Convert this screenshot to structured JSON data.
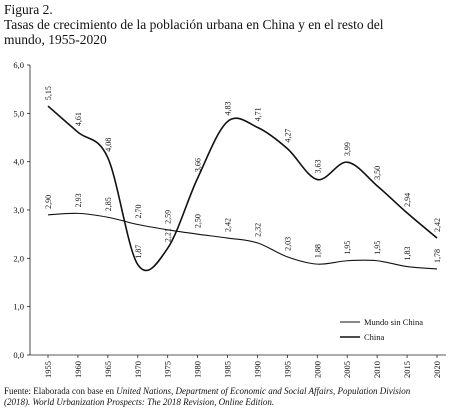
{
  "chart_data": {
    "type": "line",
    "label": "Figura 2.",
    "title": [
      "Tasas de crecimiento de la población urbana en China y en el resto del",
      "mundo, 1955-2020"
    ],
    "categories": [
      "1955",
      "1960",
      "1965",
      "1970",
      "1975",
      "1980",
      "1985",
      "1990",
      "1995",
      "2000",
      "2005",
      "2010",
      "2015",
      "2020"
    ],
    "series": [
      {
        "name": "Mundo sin China",
        "color": "#111111",
        "values": [
          2.9,
          2.93,
          2.85,
          2.7,
          2.59,
          2.5,
          2.42,
          2.32,
          2.03,
          1.88,
          1.95,
          1.95,
          1.83,
          1.78
        ],
        "value_labels": [
          "2,90",
          "2,93",
          "2,85",
          "2,70",
          "2,59",
          "2,50",
          "2,42",
          "2,32",
          "2,03",
          "1,88",
          "1,95",
          "1,95",
          "1,83",
          "1,78"
        ]
      },
      {
        "name": "China",
        "color": "#111111",
        "values": [
          5.15,
          4.61,
          4.08,
          1.87,
          2.21,
          3.66,
          4.83,
          4.71,
          4.27,
          3.63,
          3.99,
          3.5,
          2.94,
          2.42
        ],
        "value_labels": [
          "5,15",
          "4,61",
          "4,08",
          "1,87",
          "2,21",
          "3,66",
          "4,83",
          "4,71",
          "4,27",
          "3,63",
          "3,99",
          "3,50",
          "2,94",
          "2,42"
        ]
      }
    ],
    "ylim": [
      0,
      6
    ],
    "yticks": [
      {
        "value": 0,
        "label": "0,0"
      },
      {
        "value": 1,
        "label": "1,0"
      },
      {
        "value": 2,
        "label": "2,0"
      },
      {
        "value": 3,
        "label": "3,0"
      },
      {
        "value": 4,
        "label": "4,0"
      },
      {
        "value": 5,
        "label": "5,0"
      },
      {
        "value": 6,
        "label": "6,0"
      }
    ],
    "legend": "lower right",
    "source": [
      "Fuente: Elaborada con base en",
      "United Nations, Department of Economic and Social Affairs, Population Division",
      "(2018). World Urbanization Prospects: The 2018 Revision, Online Edition."
    ]
  }
}
